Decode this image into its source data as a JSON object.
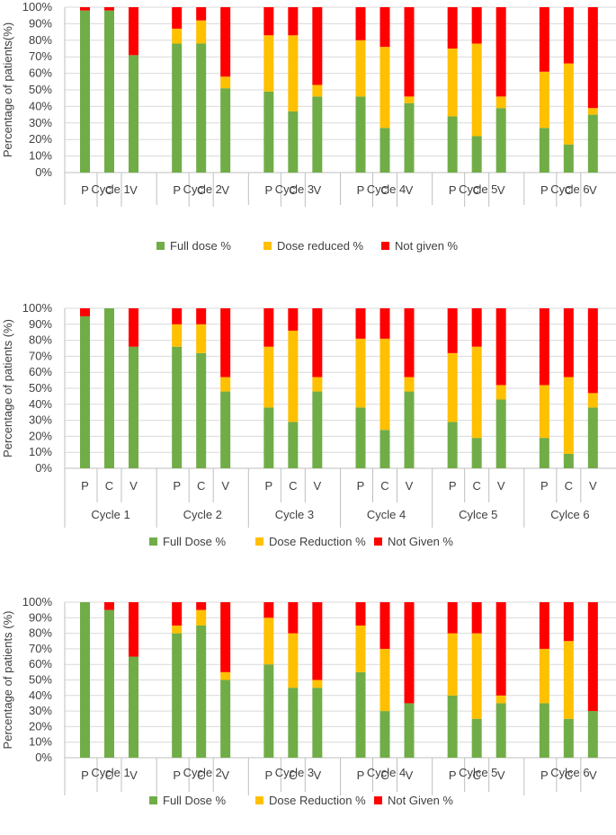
{
  "colors": {
    "full": "#70AD47",
    "reduced": "#FFC000",
    "not_given": "#FF0000",
    "grid": "#D9D9D9",
    "axis": "#BFBFBF",
    "text": "#404040"
  },
  "chart_data": [
    {
      "type": "bar",
      "stacked": true,
      "ylabel": "Percentage of patients(%)",
      "ylim": [
        0,
        100
      ],
      "yticks": [
        "0%",
        "10%",
        "20%",
        "30%",
        "40%",
        "50%",
        "60%",
        "70%",
        "80%",
        "90%",
        "100%"
      ],
      "groups": [
        "Cycle 1",
        "Cycle 2",
        "Cycle 3",
        "Cycle 4",
        "Cycle 5",
        "Cycle 6"
      ],
      "categories": [
        "P",
        "C",
        "V"
      ],
      "legend": [
        "Full dose %",
        "Dose reduced %",
        "Not given %"
      ],
      "series": [
        {
          "name": "Full dose %",
          "values": [
            [
              98,
              98,
              71
            ],
            [
              78,
              78,
              51
            ],
            [
              49,
              37,
              46
            ],
            [
              46,
              27,
              42
            ],
            [
              34,
              22,
              39
            ],
            [
              27,
              17,
              35
            ]
          ]
        },
        {
          "name": "Dose reduced %",
          "values": [
            [
              0,
              0,
              0
            ],
            [
              9,
              14,
              7
            ],
            [
              34,
              46,
              7
            ],
            [
              34,
              49,
              4
            ],
            [
              41,
              56,
              7
            ],
            [
              34,
              49,
              4
            ]
          ]
        },
        {
          "name": "Not given %",
          "values": [
            [
              2,
              2,
              29
            ],
            [
              13,
              8,
              42
            ],
            [
              17,
              17,
              47
            ],
            [
              20,
              24,
              54
            ],
            [
              25,
              22,
              54
            ],
            [
              39,
              34,
              61
            ]
          ]
        }
      ]
    },
    {
      "type": "bar",
      "stacked": true,
      "ylabel": "Percentage of patients (%)",
      "ylim": [
        0,
        100
      ],
      "yticks": [
        "0%",
        "10%",
        "20%",
        "30%",
        "40%",
        "50%",
        "60%",
        "70%",
        "80%",
        "90%",
        "100%"
      ],
      "groups": [
        "Cycle 1",
        "Cycle 2",
        "Cycle 3",
        "Cycle 4",
        "Cylce 5",
        "Cylce 6"
      ],
      "categories": [
        "P",
        "C",
        "V"
      ],
      "legend": [
        "Full Dose %",
        "Dose Reduction %",
        "Not Given %"
      ],
      "series": [
        {
          "name": "Full Dose %",
          "values": [
            [
              95,
              100,
              76
            ],
            [
              76,
              72,
              48
            ],
            [
              38,
              29,
              48
            ],
            [
              38,
              24,
              48
            ],
            [
              29,
              19,
              43
            ],
            [
              19,
              9,
              38
            ]
          ]
        },
        {
          "name": "Dose Reduction %",
          "values": [
            [
              0,
              0,
              0
            ],
            [
              14,
              18,
              9
            ],
            [
              38,
              57,
              9
            ],
            [
              43,
              57,
              9
            ],
            [
              43,
              57,
              9
            ],
            [
              33,
              48,
              9
            ]
          ]
        },
        {
          "name": "Not Given %",
          "values": [
            [
              5,
              0,
              24
            ],
            [
              10,
              10,
              43
            ],
            [
              24,
              14,
              43
            ],
            [
              19,
              19,
              43
            ],
            [
              28,
              24,
              48
            ],
            [
              48,
              43,
              53
            ]
          ]
        }
      ]
    },
    {
      "type": "bar",
      "stacked": true,
      "ylabel": "Percentage of patients (%)",
      "ylim": [
        0,
        100
      ],
      "yticks": [
        "0%",
        "10%",
        "20%",
        "30%",
        "40%",
        "50%",
        "60%",
        "70%",
        "80%",
        "90%",
        "100%"
      ],
      "groups": [
        "Cycle 1",
        "Cycle 2",
        "Cycle 3",
        "Cycle 4",
        "Cylce 5",
        "Cylce 6"
      ],
      "categories": [
        "P",
        "C",
        "V"
      ],
      "legend": [
        "Full Dose %",
        "Dose Reduction %",
        "Not Given %"
      ],
      "series": [
        {
          "name": "Full Dose %",
          "values": [
            [
              100,
              95,
              65
            ],
            [
              80,
              85,
              50
            ],
            [
              60,
              45,
              45
            ],
            [
              55,
              30,
              35
            ],
            [
              40,
              25,
              35
            ],
            [
              35,
              25,
              30
            ]
          ]
        },
        {
          "name": "Dose Reduction %",
          "values": [
            [
              0,
              0,
              0
            ],
            [
              5,
              10,
              5
            ],
            [
              30,
              35,
              5
            ],
            [
              30,
              40,
              0
            ],
            [
              40,
              55,
              5
            ],
            [
              35,
              50,
              0
            ]
          ]
        },
        {
          "name": "Not Given %",
          "values": [
            [
              0,
              5,
              35
            ],
            [
              15,
              5,
              45
            ],
            [
              10,
              20,
              50
            ],
            [
              15,
              30,
              65
            ],
            [
              20,
              20,
              60
            ],
            [
              30,
              25,
              70
            ]
          ]
        }
      ]
    }
  ]
}
